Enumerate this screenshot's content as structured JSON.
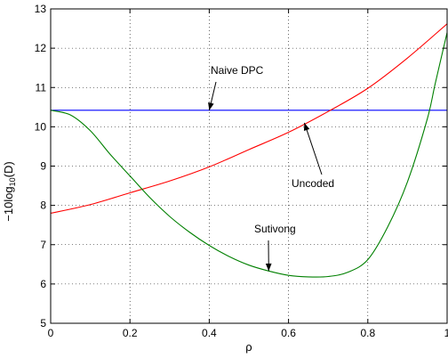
{
  "chart_data": {
    "type": "line",
    "title": "",
    "xlabel": "ρ",
    "ylabel_parts": {
      "base": "−10log",
      "sub": "10",
      "tail": "(D)"
    },
    "xlim": [
      0,
      1
    ],
    "ylim": [
      5,
      13
    ],
    "xticks": [
      0,
      0.2,
      0.4,
      0.6,
      0.8,
      1
    ],
    "xtick_labels": [
      "0",
      "0.2",
      "0.4",
      "0.6",
      "0.8",
      "1"
    ],
    "yticks": [
      5,
      6,
      7,
      8,
      9,
      10,
      11,
      12,
      13
    ],
    "ytick_labels": [
      "5",
      "6",
      "7",
      "8",
      "9",
      "10",
      "11",
      "12",
      "13"
    ],
    "grid": true,
    "series": [
      {
        "name": "Naive DPC",
        "color": "#0000ff",
        "x": [
          0,
          1
        ],
        "y": [
          10.42,
          10.42
        ]
      },
      {
        "name": "Uncoded",
        "color": "#ff0000",
        "x": [
          0,
          0.1,
          0.2,
          0.3,
          0.4,
          0.5,
          0.6,
          0.7,
          0.8,
          0.9,
          1.0
        ],
        "y": [
          7.8,
          8.02,
          8.32,
          8.62,
          8.98,
          9.42,
          9.86,
          10.39,
          10.98,
          11.75,
          12.62
        ]
      },
      {
        "name": "Sutivong",
        "color": "#008000",
        "x": [
          0,
          0.05,
          0.1,
          0.15,
          0.2,
          0.25,
          0.3,
          0.35,
          0.4,
          0.45,
          0.5,
          0.55,
          0.6,
          0.65,
          0.7,
          0.75,
          0.8,
          0.85,
          0.9,
          0.95,
          0.97,
          1.0
        ],
        "y": [
          10.42,
          10.3,
          9.9,
          9.3,
          8.75,
          8.2,
          7.72,
          7.32,
          6.98,
          6.7,
          6.48,
          6.33,
          6.22,
          6.18,
          6.19,
          6.3,
          6.62,
          7.45,
          8.6,
          10.2,
          11.1,
          12.4
        ]
      }
    ],
    "annotations": [
      {
        "text": "Naive DPC",
        "series": "Naive DPC",
        "point": [
          0.4,
          10.42
        ]
      },
      {
        "text": "Uncoded",
        "series": "Uncoded",
        "point": [
          0.64,
          10.1
        ]
      },
      {
        "text": "Sutivong",
        "series": "Sutivong",
        "point": [
          0.55,
          6.33
        ]
      }
    ]
  }
}
